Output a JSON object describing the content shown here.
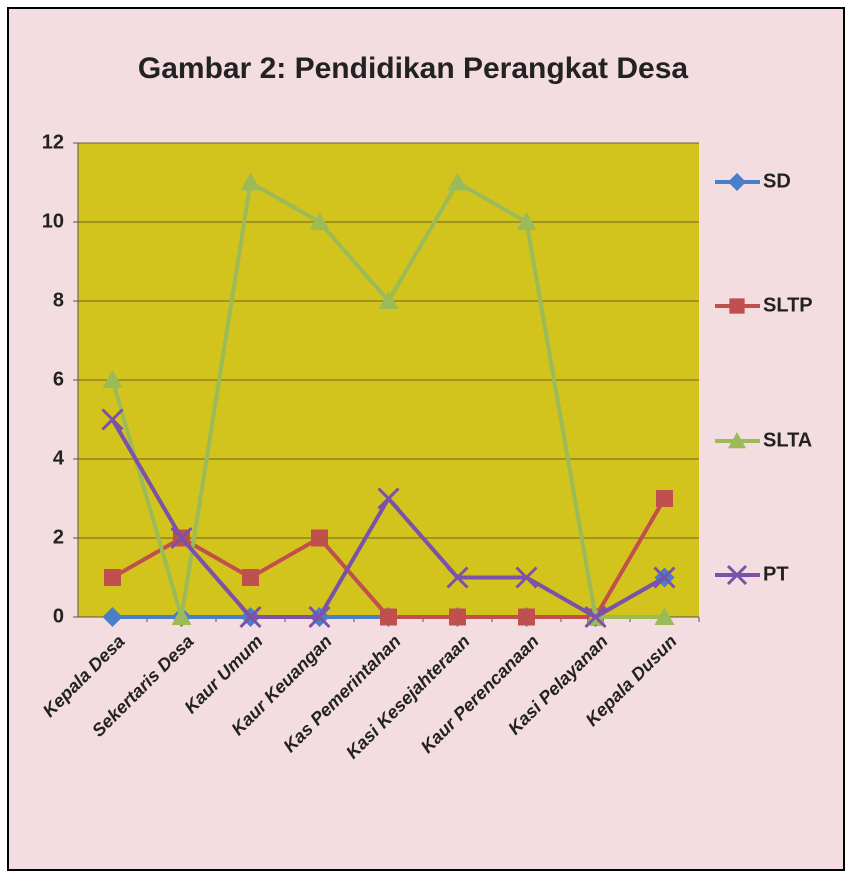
{
  "chart_data": {
    "type": "line",
    "title": "Gambar 2: Pendidikan Perangkat Desa",
    "categories": [
      "Kepala Desa",
      "Sekertaris Desa",
      "Kaur Umum",
      "Kaur Keuangan",
      "Kas Pemerintahan",
      "Kasi Kesejahteraan",
      "Kaur Perencanaan",
      "Kasi Pelayanan",
      "Kepala Dusun"
    ],
    "series": [
      {
        "name": "SD",
        "color": "#4a7ec8",
        "marker": "diamond",
        "values": [
          0,
          0,
          0,
          0,
          0,
          0,
          0,
          0,
          1
        ]
      },
      {
        "name": "SLTP",
        "color": "#c0504d",
        "marker": "square",
        "values": [
          1,
          2,
          1,
          2,
          0,
          0,
          0,
          0,
          3
        ]
      },
      {
        "name": "SLTA",
        "color": "#9bbb59",
        "marker": "triangle",
        "values": [
          6,
          0,
          11,
          10,
          8,
          11,
          10,
          0,
          0
        ]
      },
      {
        "name": "PT",
        "color": "#7b52a8",
        "marker": "x",
        "values": [
          5,
          2,
          0,
          0,
          3,
          1,
          1,
          0,
          1
        ]
      }
    ],
    "ylim": [
      0,
      12
    ],
    "yticks": [
      0,
      2,
      4,
      6,
      8,
      10,
      12
    ],
    "grid": true,
    "legend": "right"
  }
}
